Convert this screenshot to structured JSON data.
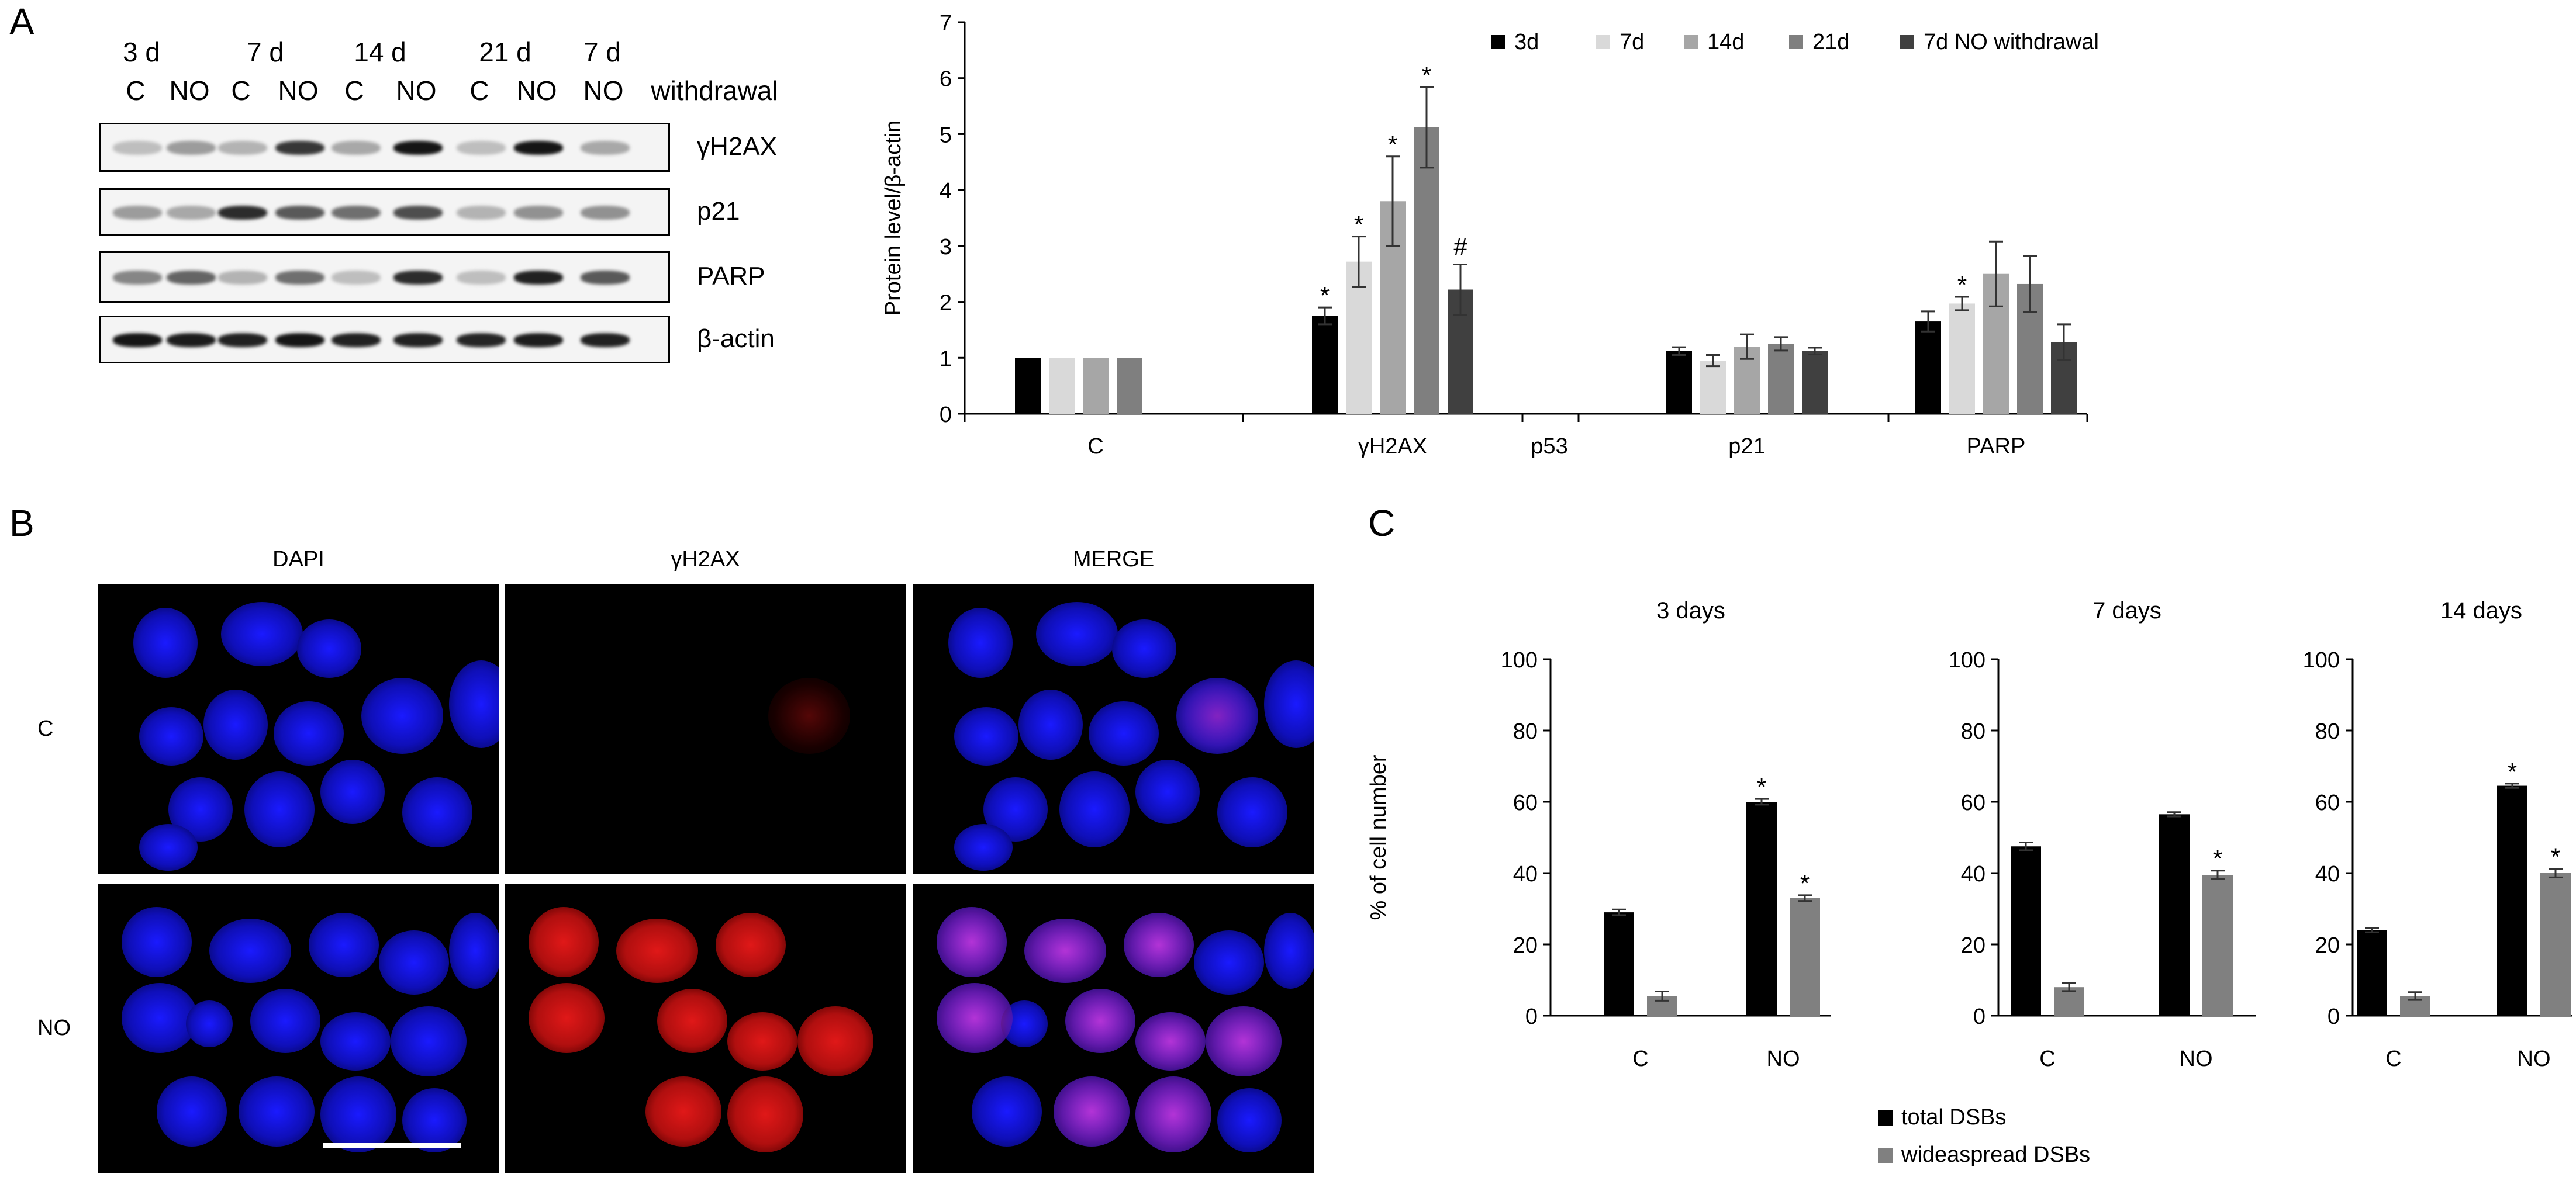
{
  "panelA": {
    "letter": "A",
    "blot": {
      "time_labels": [
        "3 d",
        "7 d",
        "14 d",
        "21 d",
        "7  d"
      ],
      "condition_labels": [
        "C",
        "NO",
        "C",
        "NO",
        "C",
        "NO",
        "C",
        "NO",
        "NO"
      ],
      "withdrawal_label": "withdrawal",
      "proteins": [
        "γH2AX",
        "p21",
        "PARP",
        "β-actin"
      ],
      "band_intensity": {
        "gH2AX": [
          0.2,
          0.35,
          0.25,
          0.8,
          0.3,
          0.95,
          0.2,
          0.95,
          0.3
        ],
        "p21": [
          0.35,
          0.3,
          0.85,
          0.65,
          0.55,
          0.7,
          0.25,
          0.4,
          0.4
        ],
        "PARP": [
          0.45,
          0.6,
          0.25,
          0.55,
          0.2,
          0.85,
          0.2,
          0.9,
          0.65
        ],
        "actin": [
          0.95,
          0.92,
          0.9,
          0.95,
          0.9,
          0.9,
          0.88,
          0.92,
          0.9
        ]
      }
    }
  },
  "chart_data": [
    {
      "id": "A-bar",
      "type": "bar",
      "ylabel": "Protein level/β-actin",
      "ylim": [
        0,
        7
      ],
      "yticks": [
        0,
        1,
        2,
        3,
        4,
        5,
        6,
        7
      ],
      "categories": [
        "C",
        "γH2AX",
        "p53",
        "p21",
        "PARP"
      ],
      "legend_position": "top-right",
      "series": [
        {
          "name": "3d",
          "color": "#000000",
          "values": [
            1,
            1.75,
            null,
            1.12,
            1.65
          ],
          "errors": [
            0,
            0.15,
            null,
            0.07,
            0.18
          ],
          "marks": [
            "",
            "*",
            "",
            "",
            ""
          ]
        },
        {
          "name": "7d",
          "color": "#d9d9d9",
          "values": [
            1,
            2.72,
            null,
            0.95,
            1.97
          ],
          "errors": [
            0,
            0.45,
            null,
            0.1,
            0.12
          ],
          "marks": [
            "",
            "*",
            "",
            "",
            "*"
          ]
        },
        {
          "name": "14d",
          "color": "#a6a6a6",
          "values": [
            1,
            3.8,
            null,
            1.2,
            2.5
          ],
          "errors": [
            0,
            0.8,
            null,
            0.22,
            0.58
          ],
          "marks": [
            "",
            "*",
            "",
            "",
            ""
          ]
        },
        {
          "name": "21d",
          "color": "#7f7f7f",
          "values": [
            1,
            5.12,
            null,
            1.25,
            2.32
          ],
          "errors": [
            0,
            0.72,
            null,
            0.12,
            0.5
          ],
          "marks": [
            "",
            "*",
            "",
            "",
            ""
          ]
        },
        {
          "name": "7d NO withdrawal",
          "color": "#404040",
          "values": [
            null,
            2.22,
            null,
            1.12,
            1.28
          ],
          "errors": [
            null,
            0.45,
            null,
            0.06,
            0.32
          ],
          "marks": [
            "",
            "#",
            "",
            "",
            ""
          ]
        }
      ]
    },
    {
      "id": "C-3days",
      "type": "bar",
      "title": "3 days",
      "ylabel": "% of cell number",
      "ylim": [
        0,
        100
      ],
      "yticks": [
        0,
        20,
        40,
        60,
        80,
        100
      ],
      "categories": [
        "C",
        "NO"
      ],
      "series": [
        {
          "name": "total DSBs",
          "color": "#000000",
          "values": [
            29,
            60
          ],
          "errors": [
            0.8,
            0.8
          ],
          "marks": [
            "",
            "*"
          ]
        },
        {
          "name": "wideaspread DSBs",
          "color": "#808080",
          "values": [
            5.5,
            33
          ],
          "errors": [
            1.3,
            0.8
          ],
          "marks": [
            "",
            "*"
          ]
        }
      ]
    },
    {
      "id": "C-7days",
      "type": "bar",
      "title": "7 days",
      "ylim": [
        0,
        100
      ],
      "yticks": [
        0,
        20,
        40,
        60,
        80,
        100
      ],
      "categories": [
        "C",
        "NO"
      ],
      "series": [
        {
          "name": "total DSBs",
          "color": "#000000",
          "values": [
            47.5,
            56.5
          ],
          "errors": [
            1.1,
            0.6
          ],
          "marks": [
            "",
            ""
          ]
        },
        {
          "name": "wideaspread DSBs",
          "color": "#808080",
          "values": [
            8,
            39.5
          ],
          "errors": [
            1.1,
            1.2
          ],
          "marks": [
            "",
            "*"
          ]
        }
      ]
    },
    {
      "id": "C-14days",
      "type": "bar",
      "title": "14 days",
      "ylim": [
        0,
        100
      ],
      "yticks": [
        0,
        20,
        40,
        60,
        80,
        100
      ],
      "categories": [
        "C",
        "NO"
      ],
      "series": [
        {
          "name": "total DSBs",
          "color": "#000000",
          "values": [
            24,
            64.5
          ],
          "errors": [
            0.6,
            0.6
          ],
          "marks": [
            "",
            "*"
          ]
        },
        {
          "name": "wideaspread DSBs",
          "color": "#808080",
          "values": [
            5.5,
            40
          ],
          "errors": [
            1.1,
            1.2
          ],
          "marks": [
            "",
            "*"
          ]
        }
      ]
    }
  ],
  "panelB": {
    "letter": "B",
    "columns": [
      "DAPI",
      "γH2AX",
      "MERGE"
    ],
    "rows": [
      "C",
      "NO"
    ]
  },
  "panelC": {
    "letter": "C",
    "legend": [
      "total DSBs",
      "wideaspread DSBs"
    ]
  }
}
